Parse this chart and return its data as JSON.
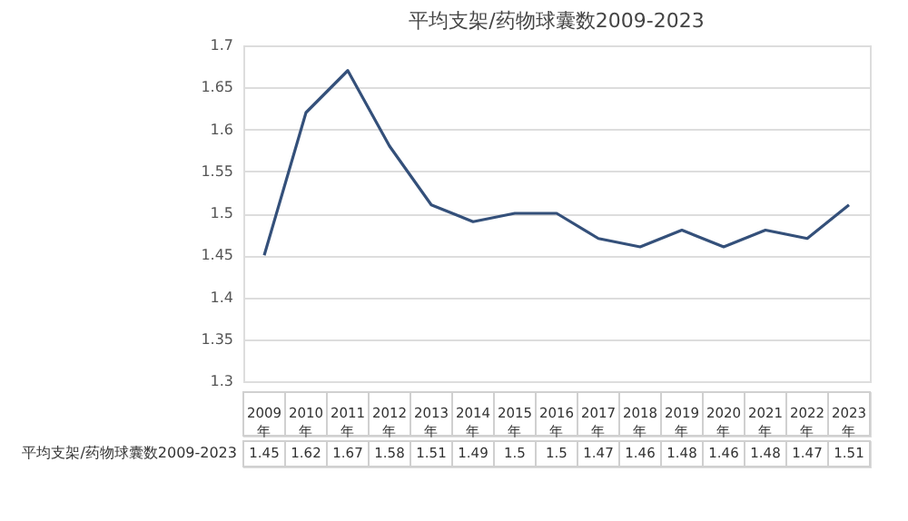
{
  "chart_data": {
    "type": "line",
    "title": "平均支架/药物球囊数2009-2023",
    "categories": [
      "2009年",
      "2010年",
      "2011年",
      "2012年",
      "2013年",
      "2014年",
      "2015年",
      "2016年",
      "2017年",
      "2018年",
      "2019年",
      "2020年",
      "2021年",
      "2022年",
      "2023年"
    ],
    "series": [
      {
        "name": "平均支架/药物球囊数2009-2023",
        "color": "#34507a",
        "values": [
          1.45,
          1.62,
          1.67,
          1.58,
          1.51,
          1.49,
          1.5,
          1.5,
          1.47,
          1.46,
          1.48,
          1.46,
          1.48,
          1.47,
          1.51
        ]
      }
    ],
    "ylim": [
      1.3,
      1.7
    ],
    "yticks": [
      1.3,
      1.35,
      1.4,
      1.45,
      1.5,
      1.55,
      1.6,
      1.65,
      1.7
    ],
    "grid": "y",
    "marker": "none",
    "line_style": "solid",
    "data_labels": true
  }
}
